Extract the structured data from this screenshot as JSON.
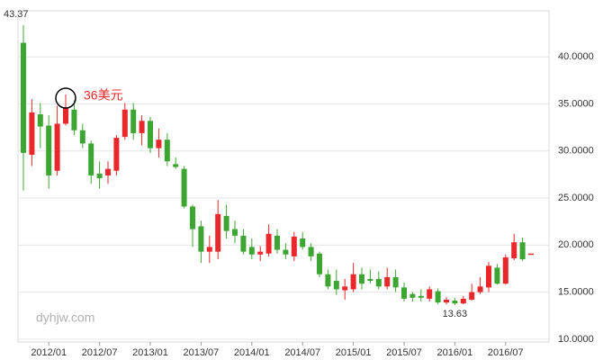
{
  "chart_data": {
    "type": "candlestick",
    "categories": [
      null,
      null,
      null,
      "2012/01",
      null,
      null,
      null,
      null,
      null,
      "2012/07",
      null,
      null,
      null,
      null,
      null,
      "2013/01",
      null,
      null,
      null,
      null,
      null,
      "2013/07",
      null,
      null,
      null,
      null,
      null,
      "2014/01",
      null,
      null,
      null,
      null,
      null,
      "2014/07",
      null,
      null,
      null,
      null,
      null,
      "2015/01",
      null,
      null,
      null,
      null,
      null,
      "2015/07",
      null,
      null,
      null,
      null,
      null,
      "2016/01",
      null,
      null,
      null,
      null,
      null,
      "2016/07",
      null,
      null,
      null
    ],
    "open": [
      41.5,
      29.6,
      33.9,
      32.7,
      27.9,
      32.9,
      34.4,
      32.2,
      30.8,
      27.6,
      27.4,
      27.9,
      31.5,
      34.4,
      31.9,
      33.2,
      30.3,
      31.2,
      28.6,
      28.1,
      24.1,
      22.0,
      19.3,
      19.3,
      23.1,
      21.7,
      21.0,
      19.8,
      19.0,
      19.1,
      21.0,
      19.5,
      18.8,
      20.7,
      19.8,
      19.1,
      16.9,
      16.2,
      15.2,
      15.3,
      16.9,
      16.4,
      16.4,
      15.6,
      16.6,
      15.5,
      14.8,
      14.6,
      14.3,
      15.1,
      13.9,
      14.1,
      13.8,
      14.2,
      15.0,
      15.5,
      17.6,
      15.9,
      18.6,
      20.3,
      19.0
    ],
    "high": [
      43.37,
      35.5,
      35.1,
      33.8,
      34.8,
      36,
      35.4,
      32.9,
      31.1,
      28.9,
      28.9,
      31.7,
      35.1,
      35.1,
      33.8,
      33.6,
      32.4,
      31.9,
      29.3,
      28.4,
      24.3,
      22.6,
      21.0,
      24.8,
      24.3,
      22.6,
      21.7,
      20.7,
      19.9,
      22.2,
      21.7,
      20.2,
      21.4,
      21.4,
      20.2,
      19.3,
      17.4,
      17.4,
      16.4,
      18.1,
      17.6,
      17.4,
      17.2,
      17.6,
      17.4,
      16.0,
      15.0,
      15.3,
      15.6,
      15.4,
      14.5,
      14.4,
      14.6,
      15.9,
      16.6,
      18.2,
      18.0,
      19.0,
      21.2,
      20.8,
      19.1
    ],
    "low": [
      25.8,
      28.4,
      30.3,
      26.0,
      27.4,
      32.7,
      31.7,
      30.3,
      26.5,
      26.0,
      26.5,
      27.4,
      31.2,
      31.2,
      30.6,
      29.8,
      29.3,
      28.4,
      28.1,
      23.9,
      19.8,
      18.1,
      18.1,
      18.5,
      20.7,
      20.2,
      19.0,
      18.5,
      18.3,
      18.8,
      19.1,
      18.5,
      18.3,
      19.5,
      18.3,
      16.6,
      15.3,
      14.7,
      14.2,
      15.0,
      15.3,
      15.9,
      15.3,
      15.3,
      15.0,
      14.0,
      14.0,
      14.0,
      14.0,
      13.7,
      13.7,
      13.63,
      13.7,
      14.1,
      14.8,
      15.0,
      15.8,
      15.8,
      18.4,
      18.3,
      19.0
    ],
    "close": [
      29.8,
      34.1,
      32.6,
      27.4,
      32.9,
      34.6,
      32.2,
      30.8,
      27.4,
      27.1,
      28.1,
      31.4,
      34.4,
      31.9,
      33.2,
      30.3,
      31.2,
      28.9,
      28.3,
      24.1,
      21.7,
      19.3,
      19.8,
      23.3,
      21.5,
      21.0,
      19.3,
      19.0,
      19.3,
      21.2,
      19.5,
      19.0,
      20.9,
      19.8,
      18.8,
      16.9,
      15.6,
      15.3,
      15.6,
      16.9,
      15.9,
      16.2,
      15.6,
      16.6,
      15.5,
      14.3,
      14.4,
      14.4,
      15.3,
      13.9,
      14.2,
      13.8,
      14.3,
      15.0,
      15.6,
      17.8,
      15.9,
      18.7,
      20.3,
      18.5,
      19.1
    ],
    "up_color": "#e8282b",
    "down_color": "#3da632",
    "ylim": [
      9.7,
      44.9
    ],
    "yticks": [
      {
        "value": 10,
        "label": "10.0000"
      },
      {
        "value": 15,
        "label": "15.0000"
      },
      {
        "value": 20,
        "label": "20.0000"
      },
      {
        "value": 25,
        "label": "25.0000"
      },
      {
        "value": 30,
        "label": "30.0000"
      },
      {
        "value": 35,
        "label": "35.0000"
      },
      {
        "value": 40,
        "label": "40.0000"
      }
    ],
    "grid": true,
    "annotation": "36美元",
    "watermark": "dyhjw.com"
  }
}
